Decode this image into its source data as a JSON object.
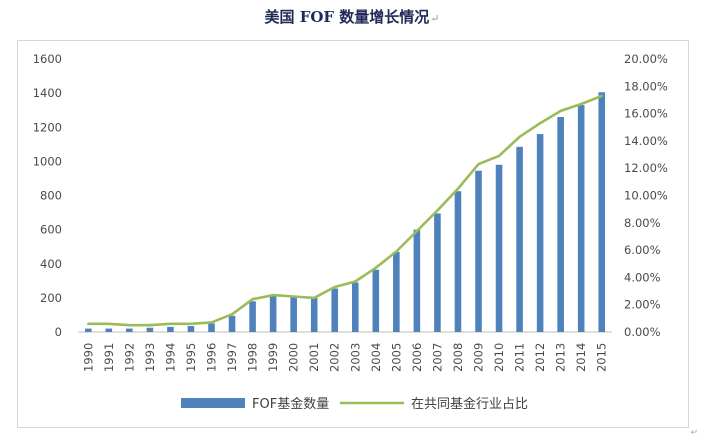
{
  "chart_data": {
    "type": "bar+line",
    "title": "美国 FOF 数量增长情况",
    "title_mark": "↵",
    "categories": [
      "1990",
      "1991",
      "1992",
      "1993",
      "1994",
      "1995",
      "1996",
      "1997",
      "1998",
      "1999",
      "2000",
      "2001",
      "2002",
      "2003",
      "2004",
      "2005",
      "2006",
      "2007",
      "2008",
      "2009",
      "2010",
      "2011",
      "2012",
      "2013",
      "2014",
      "2015"
    ],
    "series": [
      {
        "name": "FOF基金数量",
        "type": "bar",
        "axis": "left",
        "color": "#4f81bd",
        "values": [
          20,
          20,
          20,
          25,
          30,
          35,
          50,
          95,
          180,
          210,
          205,
          200,
          255,
          290,
          365,
          470,
          600,
          695,
          825,
          945,
          980,
          1085,
          1160,
          1260,
          1330,
          1405
        ]
      },
      {
        "name": "在共同基金行业占比",
        "type": "line",
        "axis": "right",
        "color": "#9bbb59",
        "values": [
          0.6,
          0.6,
          0.5,
          0.5,
          0.6,
          0.6,
          0.7,
          1.3,
          2.4,
          2.7,
          2.6,
          2.5,
          3.3,
          3.7,
          4.7,
          5.9,
          7.4,
          8.9,
          10.5,
          12.3,
          12.9,
          14.3,
          15.3,
          16.2,
          16.7,
          17.3
        ]
      }
    ],
    "y_left": {
      "min": 0,
      "max": 1600,
      "ticks": [
        "0",
        "200",
        "400",
        "600",
        "800",
        "1000",
        "1200",
        "1400",
        "1600"
      ]
    },
    "y_right": {
      "min": 0,
      "max": 20,
      "ticks": [
        "0.00%",
        "2.00%",
        "4.00%",
        "6.00%",
        "8.00%",
        "10.00%",
        "12.00%",
        "14.00%",
        "16.00%",
        "18.00%",
        "20.00%"
      ]
    },
    "grid": false,
    "legend": {
      "position": "bottom",
      "items": [
        "FOF基金数量",
        "在共同基金行业占比"
      ]
    },
    "corner_mark": "↵"
  }
}
